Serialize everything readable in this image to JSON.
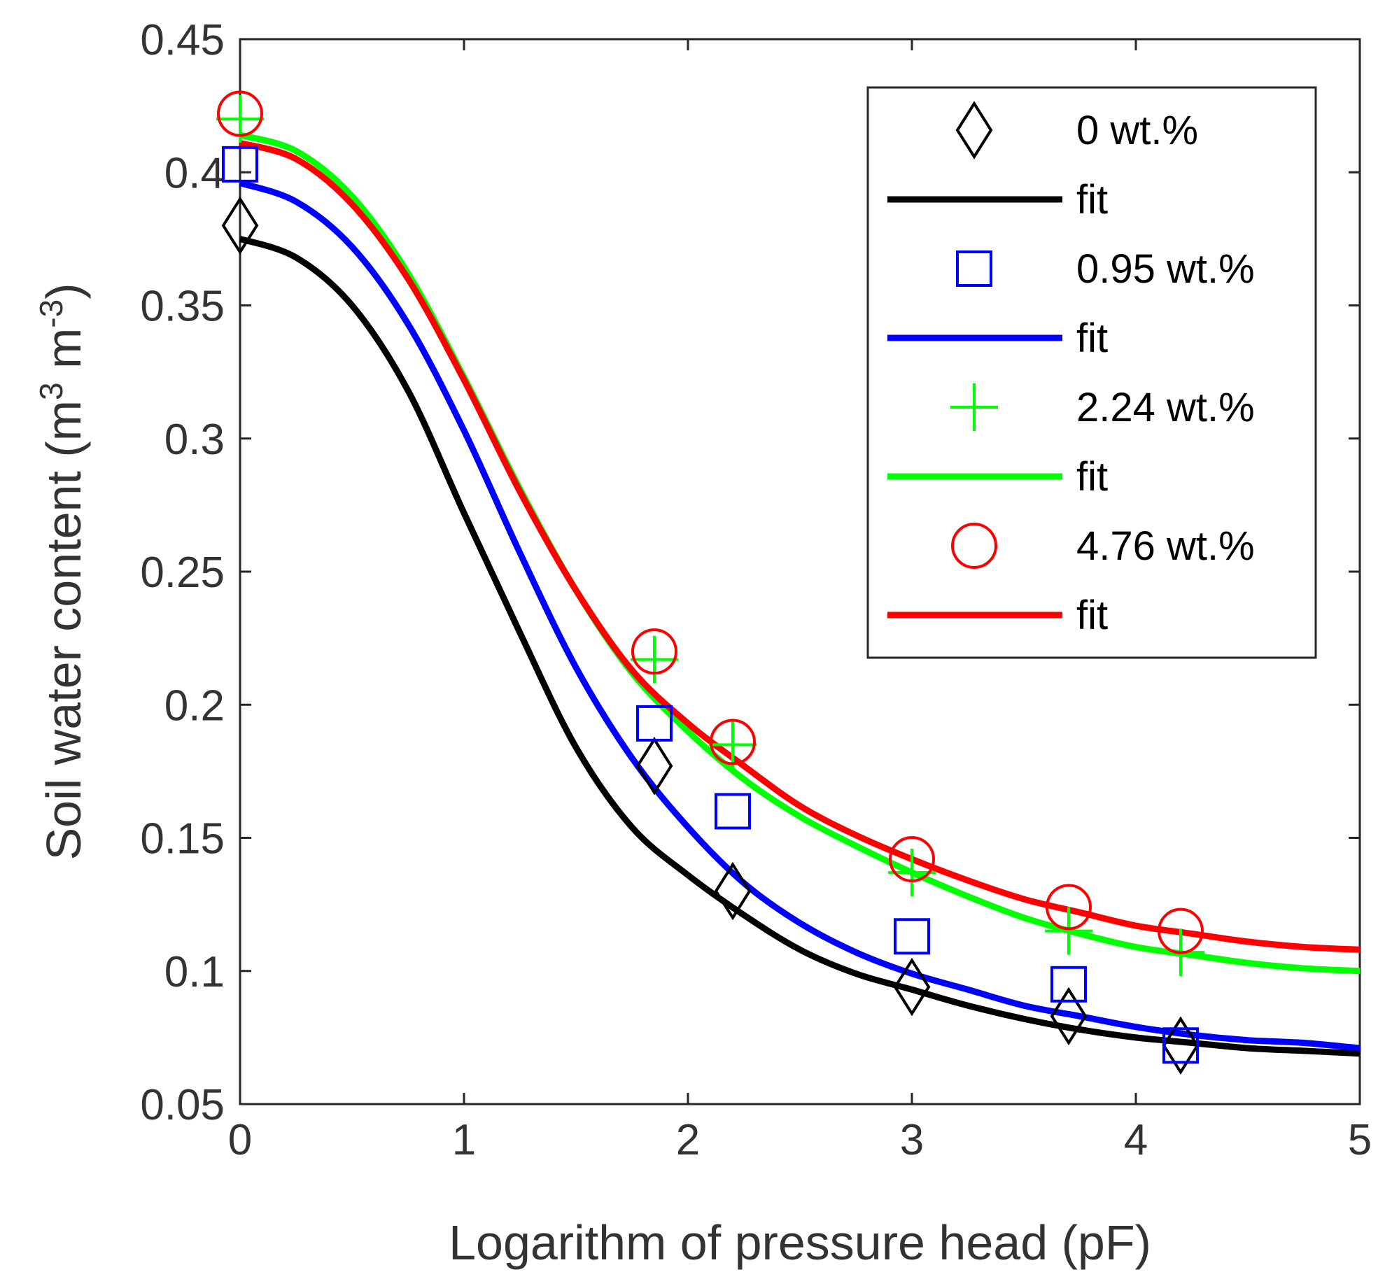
{
  "chart_data": {
    "type": "line",
    "title": "",
    "xlabel": "Logarithm of pressure head (pF)",
    "ylabel": "Soil water content (m",
    "ylabel_sup1": "3",
    "ylabel_mid": " m",
    "ylabel_sup2": "-3",
    "ylabel_end": ")",
    "xlim": [
      0,
      5
    ],
    "ylim": [
      0.05,
      0.45
    ],
    "xticks": [
      0,
      1,
      2,
      3,
      4,
      5
    ],
    "xtick_labels": [
      "0",
      "1",
      "2",
      "3",
      "4",
      "5"
    ],
    "yticks": [
      0.05,
      0.1,
      0.15,
      0.2,
      0.25,
      0.3,
      0.35,
      0.4,
      0.45
    ],
    "ytick_labels": [
      "0.05",
      "0.1",
      "0.15",
      "0.2",
      "0.25",
      "0.3",
      "0.35",
      "0.4",
      "0.45"
    ],
    "grid": false,
    "legend_position": "top-right",
    "x_measured": [
      0,
      1.85,
      2.2,
      3,
      3.7,
      4.2
    ],
    "series": [
      {
        "name": "0 wt.%",
        "color": "#000000",
        "marker": "diamond",
        "measured": [
          0.38,
          0.177,
          0.13,
          0.094,
          0.083,
          0.072
        ],
        "fit_name": "fit",
        "fit_x": [
          0,
          0.25,
          0.5,
          0.75,
          1,
          1.25,
          1.5,
          1.75,
          2,
          2.25,
          2.5,
          2.75,
          3,
          3.25,
          3.5,
          3.75,
          4,
          4.25,
          4.5,
          4.75,
          5
        ],
        "fit_y": [
          0.375,
          0.368,
          0.35,
          0.318,
          0.272,
          0.227,
          0.184,
          0.154,
          0.136,
          0.121,
          0.108,
          0.099,
          0.093,
          0.087,
          0.082,
          0.078,
          0.075,
          0.073,
          0.071,
          0.07,
          0.069
        ]
      },
      {
        "name": "0.95 wt.%",
        "color": "#0000ff",
        "marker": "square",
        "measured": [
          0.403,
          0.193,
          0.16,
          0.113,
          0.095,
          0.072
        ],
        "fit_name": "fit",
        "fit_x": [
          0,
          0.25,
          0.5,
          0.75,
          1,
          1.25,
          1.5,
          1.75,
          2,
          2.25,
          2.5,
          2.75,
          3,
          3.25,
          3.5,
          3.75,
          4,
          4.25,
          4.5,
          4.75,
          5
        ],
        "fit_y": [
          0.396,
          0.389,
          0.372,
          0.343,
          0.303,
          0.257,
          0.214,
          0.18,
          0.154,
          0.133,
          0.118,
          0.107,
          0.099,
          0.093,
          0.087,
          0.083,
          0.079,
          0.076,
          0.074,
          0.073,
          0.071
        ]
      },
      {
        "name": "2.24 wt.%",
        "color": "#00ff00",
        "marker": "plus",
        "measured": [
          0.42,
          0.217,
          0.185,
          0.137,
          0.115,
          0.107
        ],
        "fit_name": "fit",
        "fit_x": [
          0,
          0.25,
          0.5,
          0.75,
          1,
          1.25,
          1.5,
          1.75,
          2,
          2.25,
          2.5,
          2.75,
          3,
          3.25,
          3.5,
          3.75,
          4,
          4.25,
          4.5,
          4.75,
          5
        ],
        "fit_y": [
          0.414,
          0.408,
          0.391,
          0.362,
          0.323,
          0.281,
          0.243,
          0.212,
          0.19,
          0.172,
          0.158,
          0.147,
          0.137,
          0.128,
          0.12,
          0.114,
          0.109,
          0.106,
          0.103,
          0.101,
          0.1
        ]
      },
      {
        "name": "4.76 wt.%",
        "color": "#ff0000",
        "marker": "circle",
        "measured": [
          0.422,
          0.22,
          0.186,
          0.142,
          0.124,
          0.115
        ],
        "fit_name": "fit",
        "fit_x": [
          0,
          0.25,
          0.5,
          0.75,
          1,
          1.25,
          1.5,
          1.75,
          2,
          2.25,
          2.5,
          2.75,
          3,
          3.25,
          3.5,
          3.75,
          4,
          4.25,
          4.5,
          4.75,
          5
        ],
        "fit_y": [
          0.411,
          0.405,
          0.388,
          0.36,
          0.322,
          0.28,
          0.243,
          0.213,
          0.193,
          0.177,
          0.162,
          0.151,
          0.142,
          0.134,
          0.127,
          0.122,
          0.117,
          0.114,
          0.111,
          0.109,
          0.108
        ]
      }
    ]
  }
}
